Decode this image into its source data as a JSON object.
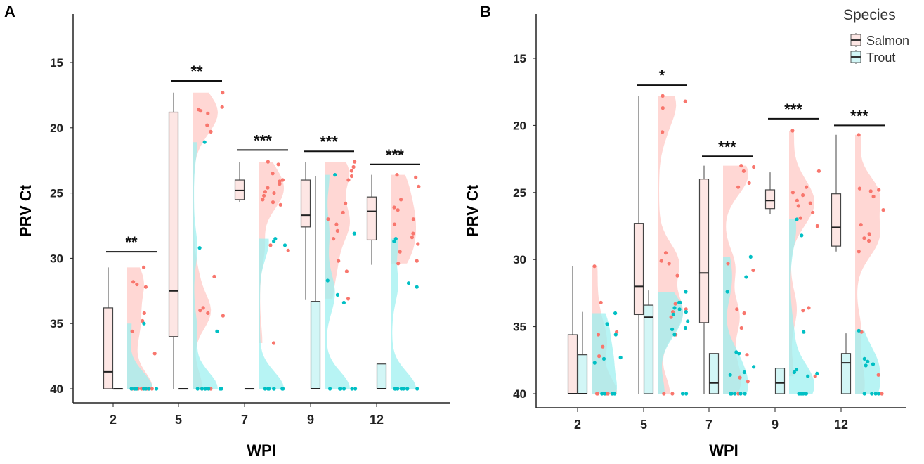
{
  "chart_data": {
    "type": "raincloud",
    "colors": {
      "salmon": "#f8766d",
      "salmon_fill": "#ffc9c5",
      "salmon_box": "#fde6e4",
      "trout": "#00bfc4",
      "trout_fill": "#9ff0f0",
      "trout_box": "#d2f6f6"
    },
    "legend": {
      "title": "Species",
      "position": "top-right",
      "entries": [
        "Salmon",
        "Trout"
      ]
    },
    "y_ticks": [
      15,
      20,
      25,
      30,
      35,
      40
    ],
    "y_range": [
      13,
      41
    ],
    "y_reversed": true,
    "panels": [
      {
        "label": "A",
        "ylabel": "PRV Ct",
        "xlabel": "WPI",
        "groups": [
          {
            "wpi": "2",
            "sig": "**",
            "sig_y": 29.5,
            "salmon": {
              "box": [
                30.7,
                33.8,
                38.7,
                40,
                40
              ],
              "points": [
                30.7,
                32.2,
                31.8,
                32.0,
                34.8,
                34.2,
                35.6,
                37.3,
                40,
                40,
                40,
                40,
                40,
                40
              ]
            },
            "trout": {
              "box": [
                40,
                40,
                40,
                40,
                40
              ],
              "points": [
                35.0,
                40,
                40,
                40,
                40,
                40,
                40,
                40,
                40
              ]
            }
          },
          {
            "wpi": "5",
            "sig": "**",
            "sig_y": 16.4,
            "salmon": {
              "box": [
                17.3,
                18.8,
                32.5,
                36.0,
                40
              ],
              "points": [
                17.3,
                18.6,
                18.9,
                18.4,
                18.7,
                19.8,
                20.3,
                31.4,
                33.8,
                34.0,
                34.4,
                34.2,
                40,
                40
              ]
            },
            "trout": {
              "box": [
                40,
                40,
                40,
                40,
                40
              ],
              "points": [
                21.1,
                29.2,
                35.6,
                40,
                40,
                40,
                40,
                40,
                40,
                40
              ]
            }
          },
          {
            "wpi": "7",
            "sig": "***",
            "sig_y": 21.7,
            "salmon": {
              "box": [
                22.6,
                24.0,
                24.8,
                25.5,
                25.7
              ],
              "points": [
                22.6,
                22.8,
                23.5,
                24.0,
                24.1,
                24.9,
                24.6,
                25.0,
                25.2,
                25.5,
                25.7,
                25.9,
                24.3,
                29.4,
                29.0,
                36.5
              ]
            },
            "trout": {
              "box": [
                40,
                40,
                40,
                40,
                40
              ],
              "points": [
                28.5,
                28.7,
                29.0,
                40,
                40,
                40,
                40,
                40,
                40,
                40,
                40
              ]
            }
          },
          {
            "wpi": "9",
            "sig": "***",
            "sig_y": 21.8,
            "salmon": {
              "box": [
                22.6,
                24.0,
                26.7,
                27.6,
                33.2
              ],
              "points": [
                23.3,
                22.6,
                23.0,
                23.7,
                24.0,
                25.8,
                26.5,
                27.0,
                27.4,
                27.9,
                28.5,
                30.2,
                31.0,
                33.1
              ]
            },
            "trout": {
              "box": [
                23.7,
                33.3,
                40,
                40,
                40
              ],
              "points": [
                23.6,
                28.1,
                31.7,
                32.8,
                33.4,
                40,
                40,
                40,
                40,
                40,
                40,
                40
              ]
            }
          },
          {
            "wpi": "12",
            "sig": "***",
            "sig_y": 22.8,
            "salmon": {
              "box": [
                23.6,
                25.3,
                26.4,
                28.6,
                30.5
              ],
              "points": [
                23.6,
                23.8,
                24.5,
                25.5,
                26.1,
                26.3,
                27.0,
                28.1,
                28.4,
                28.9,
                29.5,
                30.2,
                30.4,
                27.4
              ]
            },
            "trout": {
              "box": [
                38.1,
                38.1,
                40,
                40,
                40
              ],
              "points": [
                28.5,
                28.7,
                31.9,
                32.2,
                40,
                40,
                40,
                40,
                40,
                40,
                40,
                40
              ]
            }
          }
        ]
      },
      {
        "label": "B",
        "ylabel": "PRV Ct",
        "xlabel": "WPI",
        "groups": [
          {
            "wpi": "2",
            "sig": "",
            "sig_y": null,
            "salmon": {
              "box": [
                30.5,
                35.6,
                40,
                40,
                40
              ],
              "points": [
                33.2,
                36.5,
                35.4,
                35.6,
                37.2,
                30.5,
                40,
                40,
                40,
                40,
                40,
                40
              ]
            },
            "trout": {
              "box": [
                33.9,
                37.1,
                40,
                40,
                40
              ],
              "points": [
                37.7,
                35.6,
                34.8,
                34.0,
                37.4,
                37.3,
                40,
                40,
                40,
                40
              ]
            }
          },
          {
            "wpi": "5",
            "sig": "*",
            "sig_y": 17.0,
            "salmon": {
              "box": [
                17.8,
                27.3,
                32.0,
                34.1,
                40
              ],
              "points": [
                17.8,
                18.2,
                18.7,
                20.5,
                29.5,
                30.3,
                30.1,
                31.2,
                33.9,
                34.3,
                35.6,
                33.7,
                33.3,
                40,
                40
              ]
            },
            "trout": {
              "box": [
                32.3,
                33.4,
                34.3,
                40,
                40
              ],
              "points": [
                32.4,
                33.2,
                33.6,
                33.9,
                33.7,
                34.1,
                34.6,
                35.1,
                35.2,
                35.6,
                33.2,
                40,
                40
              ]
            }
          },
          {
            "wpi": "7",
            "sig": "***",
            "sig_y": 22.3,
            "salmon": {
              "box": [
                23.0,
                24.0,
                31.0,
                34.7,
                40
              ],
              "points": [
                23.0,
                23.1,
                23.4,
                24.3,
                24.6,
                30.3,
                30.8,
                35.1,
                34.0,
                33.7,
                37.1,
                39.1,
                38.8,
                40
              ]
            },
            "trout": {
              "box": [
                37.0,
                37.0,
                39.2,
                40,
                40
              ],
              "points": [
                29.8,
                31.3,
                32.4,
                36.9,
                37.0,
                38.0,
                38.4,
                38.6,
                40,
                40,
                40,
                40,
                40
              ]
            }
          },
          {
            "wpi": "9",
            "sig": "***",
            "sig_y": 19.5,
            "salmon": {
              "box": [
                23.5,
                24.8,
                25.6,
                26.2,
                26.6
              ],
              "points": [
                20.4,
                23.4,
                24.6,
                25.0,
                25.2,
                25.6,
                25.8,
                26.0,
                26.5,
                26.9,
                27.5,
                33.6,
                33.8,
                38.7
              ]
            },
            "trout": {
              "box": [
                38.1,
                38.1,
                39.2,
                40,
                40
              ],
              "points": [
                27.0,
                28.2,
                35.4,
                38.5,
                38.7,
                38.4,
                38.2,
                40,
                40,
                40,
                40,
                40
              ]
            }
          },
          {
            "wpi": "12",
            "sig": "***",
            "sig_y": 20.0,
            "salmon": {
              "box": [
                20.7,
                25.1,
                27.6,
                29.0,
                29.4
              ],
              "points": [
                20.7,
                24.7,
                24.8,
                24.9,
                25.3,
                26.3,
                27.4,
                28.1,
                28.4,
                28.6,
                29.4,
                35.4,
                38.6,
                40
              ]
            },
            "trout": {
              "box": [
                35.5,
                37.0,
                37.7,
                40,
                40
              ],
              "points": [
                35.3,
                37.8,
                37.9,
                37.6,
                37.4,
                40,
                40,
                40,
                40
              ]
            }
          }
        ]
      }
    ]
  }
}
